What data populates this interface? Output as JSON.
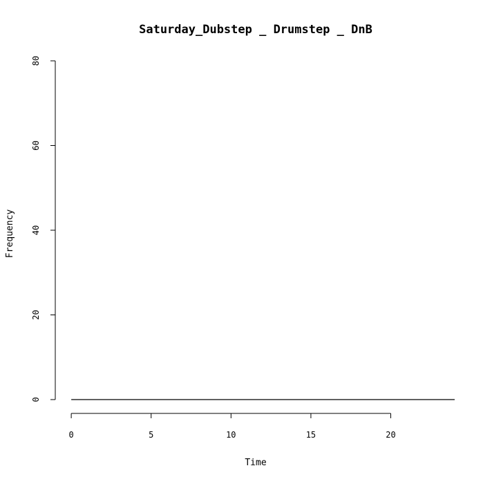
{
  "chart_data": {
    "type": "line",
    "title": "Saturday_Dubstep _ Drumstep _ DnB",
    "xlabel": "Time",
    "ylabel": "Frequency",
    "xlim": [
      -1,
      24
    ],
    "ylim": [
      0,
      80
    ],
    "x_ticks": [
      "0",
      "5",
      "10",
      "15",
      "20"
    ],
    "y_ticks": [
      "0",
      "20",
      "40",
      "60",
      "80"
    ],
    "series": [
      {
        "x": [
          0,
          24
        ],
        "values": [
          0,
          0
        ],
        "color": "#000000"
      }
    ],
    "grid": false,
    "legend": "none"
  }
}
